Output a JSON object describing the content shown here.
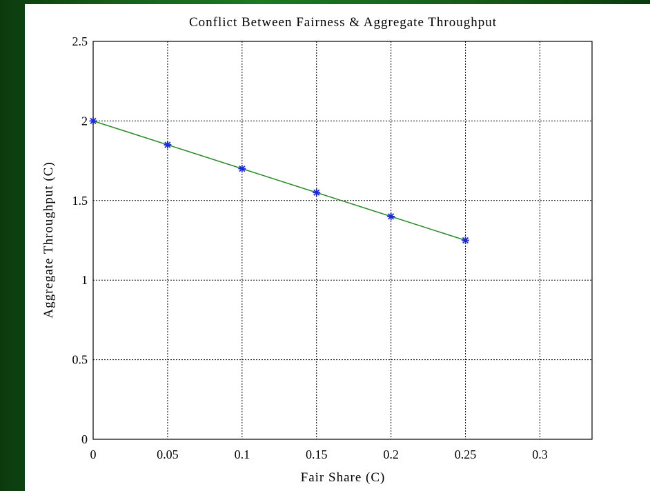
{
  "colors": {
    "background": "#0f4a12",
    "line": "#2a8a2a",
    "marker": "#1a2ad0",
    "grid": "#000000"
  },
  "chart_data": {
    "type": "line",
    "title": "Conflict Between Fairness & Aggregate Throughput",
    "xlabel": "Fair Share (C)",
    "ylabel": "Aggregate Throughput (C)",
    "xlim": [
      0,
      0.335
    ],
    "ylim": [
      0,
      2.5
    ],
    "xticks": [
      0,
      0.05,
      0.1,
      0.15,
      0.2,
      0.25,
      0.3
    ],
    "xtick_labels": [
      "0",
      "0.05",
      "0.1",
      "0.15",
      "0.2",
      "0.25",
      "0.3"
    ],
    "yticks": [
      0,
      0.5,
      1,
      1.5,
      2,
      2.5
    ],
    "ytick_labels": [
      "0",
      "0.5",
      "1",
      "1.5",
      "2",
      "2.5"
    ],
    "grid": true,
    "series": [
      {
        "x": [
          0,
          0.05,
          0.1,
          0.15,
          0.2,
          0.25
        ],
        "values": [
          2.0,
          1.85,
          1.7,
          1.55,
          1.4,
          1.25
        ],
        "marker": "star"
      }
    ]
  }
}
